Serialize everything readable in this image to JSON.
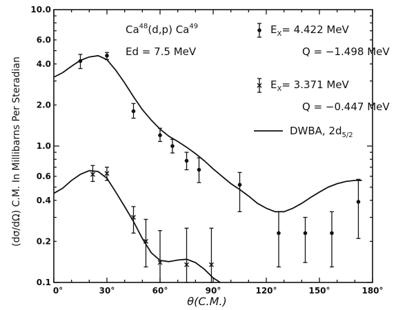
{
  "chart_data": {
    "type": "scatter",
    "title": "",
    "xlabel": "θ(C.M.)",
    "ylabel": "(dσ/dΩ) C.M. In Millibarns Per Steradian",
    "y_scale": "log",
    "xlim": [
      0,
      180
    ],
    "ylim": [
      0.1,
      10.0
    ],
    "grid": false,
    "legend_position": "top-right",
    "x_tick_labels": [
      "0°",
      "30°",
      "60°",
      "90°",
      "120°",
      "150°",
      "180°"
    ],
    "y_tick_labels": [
      "10.0",
      "6.0",
      "4.0",
      "2.0",
      "1.0",
      "0.6",
      "0.4",
      "0.2",
      "0.1"
    ],
    "y_tick_values": [
      10.0,
      6.0,
      4.0,
      2.0,
      1.0,
      0.6,
      0.4,
      0.2,
      0.1
    ],
    "annotations": {
      "reaction_base": "Ca",
      "reaction_a1": "48",
      "reaction_mid": "(d,p) Ca",
      "reaction_a2": "49",
      "energy": "Ed = 7.5 MeV"
    },
    "legend": [
      {
        "marker": "dot",
        "line1": "E",
        "line1_sub": "X",
        "line1_rest": "= 4.422 MeV",
        "line2": "Q = −1.498 MeV"
      },
      {
        "marker": "cross",
        "line1": "E",
        "line1_sub": "X",
        "line1_rest": "= 3.371 MeV",
        "line2": "Q = −0.447 MeV"
      },
      {
        "marker": "line",
        "line1": "DWBA, 2d",
        "line1_sub": "5/2"
      }
    ],
    "series": [
      {
        "marker": "dot",
        "name": "Ex = 4.422 MeV",
        "points": [
          {
            "x": 15,
            "y": 4.2,
            "lo": 3.7,
            "hi": 4.7
          },
          {
            "x": 30,
            "y": 4.6,
            "lo": 4.3,
            "hi": 4.85
          },
          {
            "x": 45,
            "y": 1.8,
            "lo": 1.6,
            "hi": 2.05
          },
          {
            "x": 60,
            "y": 1.2,
            "lo": 1.08,
            "hi": 1.35
          },
          {
            "x": 67,
            "y": 1.0,
            "lo": 0.89,
            "hi": 1.12
          },
          {
            "x": 75,
            "y": 0.78,
            "lo": 0.67,
            "hi": 0.9
          },
          {
            "x": 82,
            "y": 0.67,
            "lo": 0.54,
            "hi": 0.82
          },
          {
            "x": 105,
            "y": 0.52,
            "lo": 0.33,
            "hi": 0.64
          },
          {
            "x": 127,
            "y": 0.23,
            "lo": 0.13,
            "hi": 0.33
          },
          {
            "x": 142,
            "y": 0.23,
            "lo": 0.14,
            "hi": 0.3
          },
          {
            "x": 157,
            "y": 0.23,
            "lo": 0.13,
            "hi": 0.33
          },
          {
            "x": 172,
            "y": 0.39,
            "lo": 0.21,
            "hi": 0.57
          }
        ]
      },
      {
        "marker": "cross",
        "name": "Ex = 3.371 MeV",
        "points": [
          {
            "x": 22,
            "y": 0.62,
            "lo": 0.55,
            "hi": 0.72
          },
          {
            "x": 30,
            "y": 0.63,
            "lo": 0.56,
            "hi": 0.7
          },
          {
            "x": 45,
            "y": 0.3,
            "lo": 0.23,
            "hi": 0.36
          },
          {
            "x": 52,
            "y": 0.2,
            "lo": 0.13,
            "hi": 0.29
          },
          {
            "x": 60,
            "y": 0.14,
            "lo": 0.1,
            "hi": 0.24
          },
          {
            "x": 75,
            "y": 0.135,
            "lo": 0.1,
            "hi": 0.25
          },
          {
            "x": 89,
            "y": 0.135,
            "lo": 0.1,
            "hi": 0.25
          }
        ]
      },
      {
        "marker": "line",
        "name": "DWBA, 2d5/2 (Ex = 4.422 MeV)",
        "points": [
          {
            "x": 0,
            "y": 3.2
          },
          {
            "x": 5,
            "y": 3.45
          },
          {
            "x": 10,
            "y": 3.85
          },
          {
            "x": 15,
            "y": 4.25
          },
          {
            "x": 20,
            "y": 4.5
          },
          {
            "x": 25,
            "y": 4.6
          },
          {
            "x": 30,
            "y": 4.3
          },
          {
            "x": 35,
            "y": 3.6
          },
          {
            "x": 40,
            "y": 2.9
          },
          {
            "x": 45,
            "y": 2.3
          },
          {
            "x": 50,
            "y": 1.85
          },
          {
            "x": 55,
            "y": 1.55
          },
          {
            "x": 60,
            "y": 1.33
          },
          {
            "x": 65,
            "y": 1.18
          },
          {
            "x": 70,
            "y": 1.08
          },
          {
            "x": 75,
            "y": 0.98
          },
          {
            "x": 80,
            "y": 0.88
          },
          {
            "x": 85,
            "y": 0.78
          },
          {
            "x": 90,
            "y": 0.68
          },
          {
            "x": 95,
            "y": 0.6
          },
          {
            "x": 100,
            "y": 0.53
          },
          {
            "x": 105,
            "y": 0.48
          },
          {
            "x": 110,
            "y": 0.43
          },
          {
            "x": 115,
            "y": 0.38
          },
          {
            "x": 120,
            "y": 0.35
          },
          {
            "x": 125,
            "y": 0.33
          },
          {
            "x": 130,
            "y": 0.33
          },
          {
            "x": 135,
            "y": 0.35
          },
          {
            "x": 140,
            "y": 0.38
          },
          {
            "x": 145,
            "y": 0.42
          },
          {
            "x": 150,
            "y": 0.46
          },
          {
            "x": 155,
            "y": 0.5
          },
          {
            "x": 160,
            "y": 0.53
          },
          {
            "x": 165,
            "y": 0.55
          },
          {
            "x": 170,
            "y": 0.56
          },
          {
            "x": 174,
            "y": 0.56
          }
        ]
      },
      {
        "marker": "line",
        "name": "DWBA, 2d5/2 (Ex = 3.371 MeV)",
        "points": [
          {
            "x": 0,
            "y": 0.45
          },
          {
            "x": 5,
            "y": 0.49
          },
          {
            "x": 10,
            "y": 0.56
          },
          {
            "x": 15,
            "y": 0.62
          },
          {
            "x": 20,
            "y": 0.66
          },
          {
            "x": 25,
            "y": 0.65
          },
          {
            "x": 30,
            "y": 0.58
          },
          {
            "x": 35,
            "y": 0.46
          },
          {
            "x": 40,
            "y": 0.36
          },
          {
            "x": 45,
            "y": 0.28
          },
          {
            "x": 50,
            "y": 0.21
          },
          {
            "x": 55,
            "y": 0.165
          },
          {
            "x": 60,
            "y": 0.145
          },
          {
            "x": 65,
            "y": 0.142
          },
          {
            "x": 70,
            "y": 0.146
          },
          {
            "x": 75,
            "y": 0.148
          },
          {
            "x": 80,
            "y": 0.14
          },
          {
            "x": 85,
            "y": 0.125
          },
          {
            "x": 90,
            "y": 0.108
          },
          {
            "x": 94,
            "y": 0.1
          }
        ]
      }
    ]
  }
}
